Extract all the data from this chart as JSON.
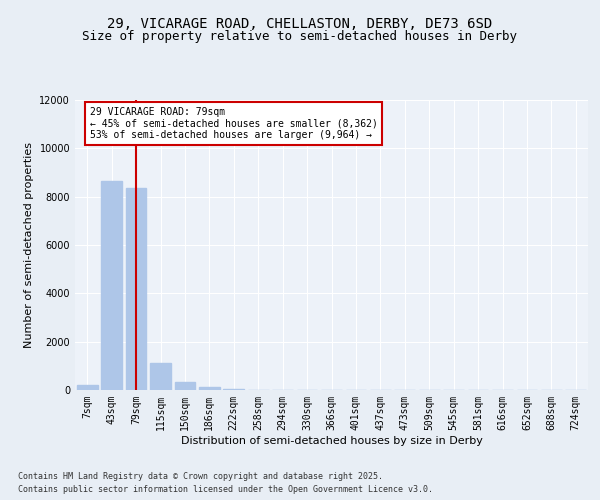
{
  "title_line1": "29, VICARAGE ROAD, CHELLASTON, DERBY, DE73 6SD",
  "title_line2": "Size of property relative to semi-detached houses in Derby",
  "xlabel": "Distribution of semi-detached houses by size in Derby",
  "ylabel": "Number of semi-detached properties",
  "categories": [
    "7sqm",
    "43sqm",
    "79sqm",
    "115sqm",
    "150sqm",
    "186sqm",
    "222sqm",
    "258sqm",
    "294sqm",
    "330sqm",
    "366sqm",
    "401sqm",
    "437sqm",
    "473sqm",
    "509sqm",
    "545sqm",
    "581sqm",
    "616sqm",
    "652sqm",
    "688sqm",
    "724sqm"
  ],
  "values": [
    200,
    8650,
    8350,
    1100,
    330,
    110,
    60,
    0,
    0,
    0,
    0,
    0,
    0,
    0,
    0,
    0,
    0,
    0,
    0,
    0,
    0
  ],
  "bar_color": "#aec6e8",
  "vline_x_index": 2,
  "vline_color": "#cc0000",
  "annotation_text": "29 VICARAGE ROAD: 79sqm\n← 45% of semi-detached houses are smaller (8,362)\n53% of semi-detached houses are larger (9,964) →",
  "annotation_box_color": "#cc0000",
  "ylim": [
    0,
    12000
  ],
  "yticks": [
    0,
    2000,
    4000,
    6000,
    8000,
    10000,
    12000
  ],
  "bg_color": "#e8eef5",
  "plot_bg_color": "#edf2f9",
  "footer_line1": "Contains HM Land Registry data © Crown copyright and database right 2025.",
  "footer_line2": "Contains public sector information licensed under the Open Government Licence v3.0.",
  "grid_color": "#ffffff",
  "title_fontsize": 10,
  "subtitle_fontsize": 9,
  "label_fontsize": 8,
  "tick_fontsize": 7,
  "footer_fontsize": 6
}
